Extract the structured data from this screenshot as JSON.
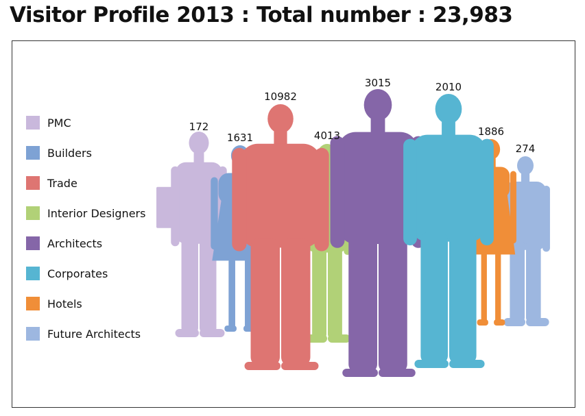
{
  "title": "Visitor Profile 2013 : Total number : 23,983",
  "chart_data": {
    "type": "other",
    "title": "Visitor Profile 2013 : Total number : 23,983",
    "legend_position": "left",
    "categories": [
      "PMC",
      "Builders",
      "Trade",
      "Interior Designers",
      "Architects",
      "Corporates",
      "Hotels",
      "Future Architects"
    ],
    "values": [
      172,
      1631,
      10982,
      4013,
      3015,
      2010,
      1886,
      274
    ],
    "colors": [
      "#c9b8dc",
      "#7ea2d4",
      "#de7572",
      "#b1d177",
      "#8566a8",
      "#56b5d2",
      "#f08e38",
      "#9db7e0"
    ]
  }
}
